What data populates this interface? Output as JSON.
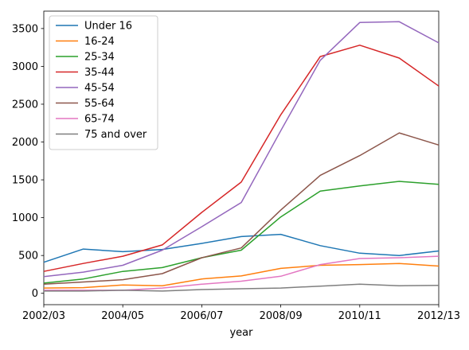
{
  "chart_data": {
    "type": "line",
    "xlabel": "year",
    "ylabel": "",
    "title": "",
    "x": [
      "2002/03",
      "2003/04",
      "2004/05",
      "2005/06",
      "2006/07",
      "2007/08",
      "2008/09",
      "2009/10",
      "2010/11",
      "2011/12",
      "2012/13"
    ],
    "x_tick_labels": [
      "2002/03",
      "2004/05",
      "2006/07",
      "2008/09",
      "2010/11",
      "2012/13"
    ],
    "ylim": [
      -150,
      3730
    ],
    "y_ticks": [
      0,
      500,
      1000,
      1500,
      2000,
      2500,
      3000,
      3500
    ],
    "grid": false,
    "legend_position": "upper left",
    "series": [
      {
        "name": "Under 16",
        "color": "#1f77b4",
        "values": [
          410,
          585,
          550,
          580,
          660,
          750,
          780,
          630,
          530,
          500,
          560
        ]
      },
      {
        "name": "16-24",
        "color": "#ff7f0e",
        "values": [
          70,
          75,
          110,
          100,
          190,
          230,
          330,
          370,
          380,
          395,
          360
        ]
      },
      {
        "name": "25-34",
        "color": "#2ca02c",
        "values": [
          135,
          190,
          290,
          340,
          470,
          570,
          1010,
          1350,
          1420,
          1480,
          1440
        ]
      },
      {
        "name": "35-44",
        "color": "#d62728",
        "values": [
          290,
          395,
          490,
          640,
          1070,
          1470,
          2360,
          3130,
          3280,
          3110,
          2740
        ]
      },
      {
        "name": "45-54",
        "color": "#9467bd",
        "values": [
          220,
          280,
          370,
          570,
          880,
          1200,
          2150,
          3080,
          3580,
          3590,
          3310
        ]
      },
      {
        "name": "55-64",
        "color": "#8c564b",
        "values": [
          120,
          150,
          180,
          260,
          470,
          600,
          1100,
          1560,
          1820,
          2120,
          1960
        ]
      },
      {
        "name": "65-74",
        "color": "#e377c2",
        "values": [
          40,
          40,
          40,
          70,
          120,
          160,
          225,
          380,
          460,
          470,
          490
        ]
      },
      {
        "name": "75 and over",
        "color": "#7f7f7f",
        "values": [
          30,
          30,
          40,
          30,
          50,
          60,
          70,
          95,
          120,
          100,
          105
        ]
      }
    ]
  }
}
